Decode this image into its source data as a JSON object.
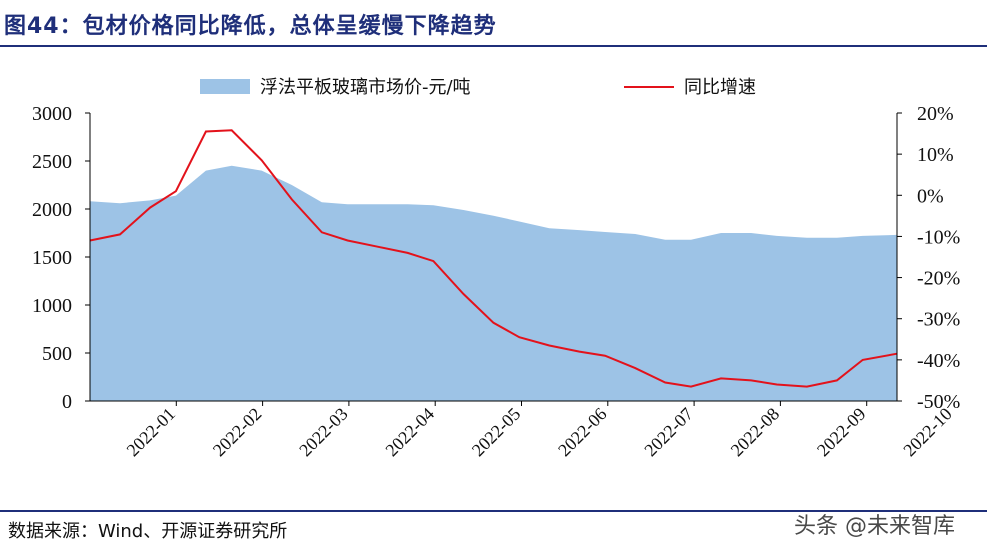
{
  "title": "图44：包材价格同比降低，总体呈缓慢下降趋势",
  "source": "数据来源：Wind、开源证券研究所",
  "watermark": "头条 @未来智库",
  "colors": {
    "area": "#9dc3e6",
    "line": "#e3121b",
    "title": "#1f2f7a"
  },
  "chart_data": {
    "type": "area+line",
    "legend": [
      "浮法平板玻璃市场价-元/吨",
      "同比增速"
    ],
    "legend_position": "top",
    "x_tick_labels": [
      "2022-01",
      "2022-02",
      "2022-03",
      "2022-04",
      "2022-05",
      "2022-06",
      "2022-07",
      "2022-08",
      "2022-09",
      "2022-10"
    ],
    "y_left": {
      "min": 0,
      "max": 3000,
      "ticks": [
        0,
        500,
        1000,
        1500,
        2000,
        2500,
        3000
      ]
    },
    "y_right": {
      "min": -50,
      "max": 20,
      "ticks": [
        -50,
        -40,
        -30,
        -20,
        -10,
        0,
        10,
        20
      ],
      "tick_labels": [
        "-50%",
        "-40%",
        "-30%",
        "-20%",
        "-10%",
        "0%",
        "10%",
        "20%"
      ]
    },
    "x_range": [
      0,
      9.4
    ],
    "series": [
      {
        "name": "浮法平板玻璃市场价-元/吨",
        "type": "area",
        "axis": "left",
        "x": [
          0.0,
          0.35,
          0.7,
          1.0,
          1.35,
          1.65,
          2.0,
          2.35,
          2.7,
          3.0,
          3.35,
          3.7,
          4.0,
          4.35,
          4.7,
          5.0,
          5.35,
          5.7,
          6.0,
          6.35,
          6.7,
          7.0,
          7.35,
          7.7,
          8.0,
          8.35,
          8.7,
          9.0,
          9.4
        ],
        "values": [
          2080,
          2060,
          2090,
          2140,
          2400,
          2450,
          2400,
          2250,
          2070,
          2050,
          2050,
          2050,
          2040,
          1990,
          1930,
          1870,
          1800,
          1780,
          1760,
          1740,
          1680,
          1680,
          1750,
          1750,
          1720,
          1700,
          1700,
          1720,
          1730
        ]
      },
      {
        "name": "同比增速",
        "type": "line",
        "axis": "right",
        "x": [
          0.0,
          0.35,
          0.7,
          1.0,
          1.35,
          1.65,
          2.0,
          2.35,
          2.7,
          3.0,
          3.35,
          3.7,
          4.0,
          4.35,
          4.7,
          5.0,
          5.35,
          5.7,
          6.0,
          6.35,
          6.7,
          7.0,
          7.35,
          7.7,
          8.0,
          8.35,
          8.7,
          9.0,
          9.4
        ],
        "values": [
          -11,
          -9.5,
          -3,
          1,
          15.5,
          15.8,
          8.5,
          -1,
          -9,
          -11,
          -12.5,
          -14,
          -16,
          -24,
          -31,
          -34.5,
          -36.5,
          -38,
          -39,
          -42,
          -45.5,
          -46.5,
          -44.5,
          -45,
          -46,
          -46.5,
          -45,
          -40,
          -38.5
        ]
      }
    ]
  }
}
